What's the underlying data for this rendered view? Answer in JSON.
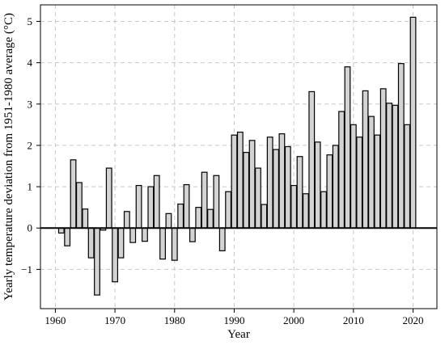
{
  "chart_data": {
    "type": "bar",
    "title": "",
    "xlabel": "Year",
    "ylabel": "Yearly temperature deviation from 1951-1980 average (°C)",
    "xlim": [
      1957.5,
      2024
    ],
    "ylim": [
      -1.95,
      5.4
    ],
    "xticks": [
      1960,
      1970,
      1980,
      1990,
      2000,
      2010,
      2020
    ],
    "yticks": [
      -1,
      0,
      1,
      2,
      3,
      4,
      5
    ],
    "grid": true,
    "bar_color": "#d3d3d3",
    "edge_color": "#000000",
    "x": [
      1961,
      1962,
      1963,
      1964,
      1965,
      1966,
      1967,
      1968,
      1969,
      1970,
      1971,
      1972,
      1973,
      1974,
      1975,
      1976,
      1977,
      1978,
      1979,
      1980,
      1981,
      1982,
      1983,
      1984,
      1985,
      1986,
      1987,
      1988,
      1989,
      1990,
      1991,
      1992,
      1993,
      1994,
      1995,
      1996,
      1997,
      1998,
      1999,
      2000,
      2001,
      2002,
      2003,
      2004,
      2005,
      2006,
      2007,
      2008,
      2009,
      2010,
      2011,
      2012,
      2013,
      2014,
      2015,
      2016,
      2017,
      2018,
      2019,
      2020
    ],
    "values": [
      -0.12,
      -0.43,
      1.65,
      1.1,
      0.46,
      -0.72,
      -1.62,
      -0.05,
      1.45,
      -1.3,
      -0.72,
      0.4,
      -0.35,
      1.03,
      -0.32,
      1.0,
      1.27,
      -0.75,
      0.35,
      -0.78,
      0.58,
      1.05,
      -0.33,
      0.5,
      1.35,
      0.45,
      1.27,
      -0.55,
      0.88,
      2.25,
      2.32,
      1.83,
      2.12,
      1.45,
      0.57,
      2.2,
      1.9,
      2.28,
      1.97,
      1.03,
      1.73,
      0.83,
      3.3,
      2.08,
      0.88,
      1.77,
      2.0,
      2.82,
      3.9,
      2.5,
      2.2,
      3.32,
      2.7,
      2.25,
      3.37,
      3.02,
      2.97,
      3.98,
      2.5,
      5.1
    ]
  }
}
